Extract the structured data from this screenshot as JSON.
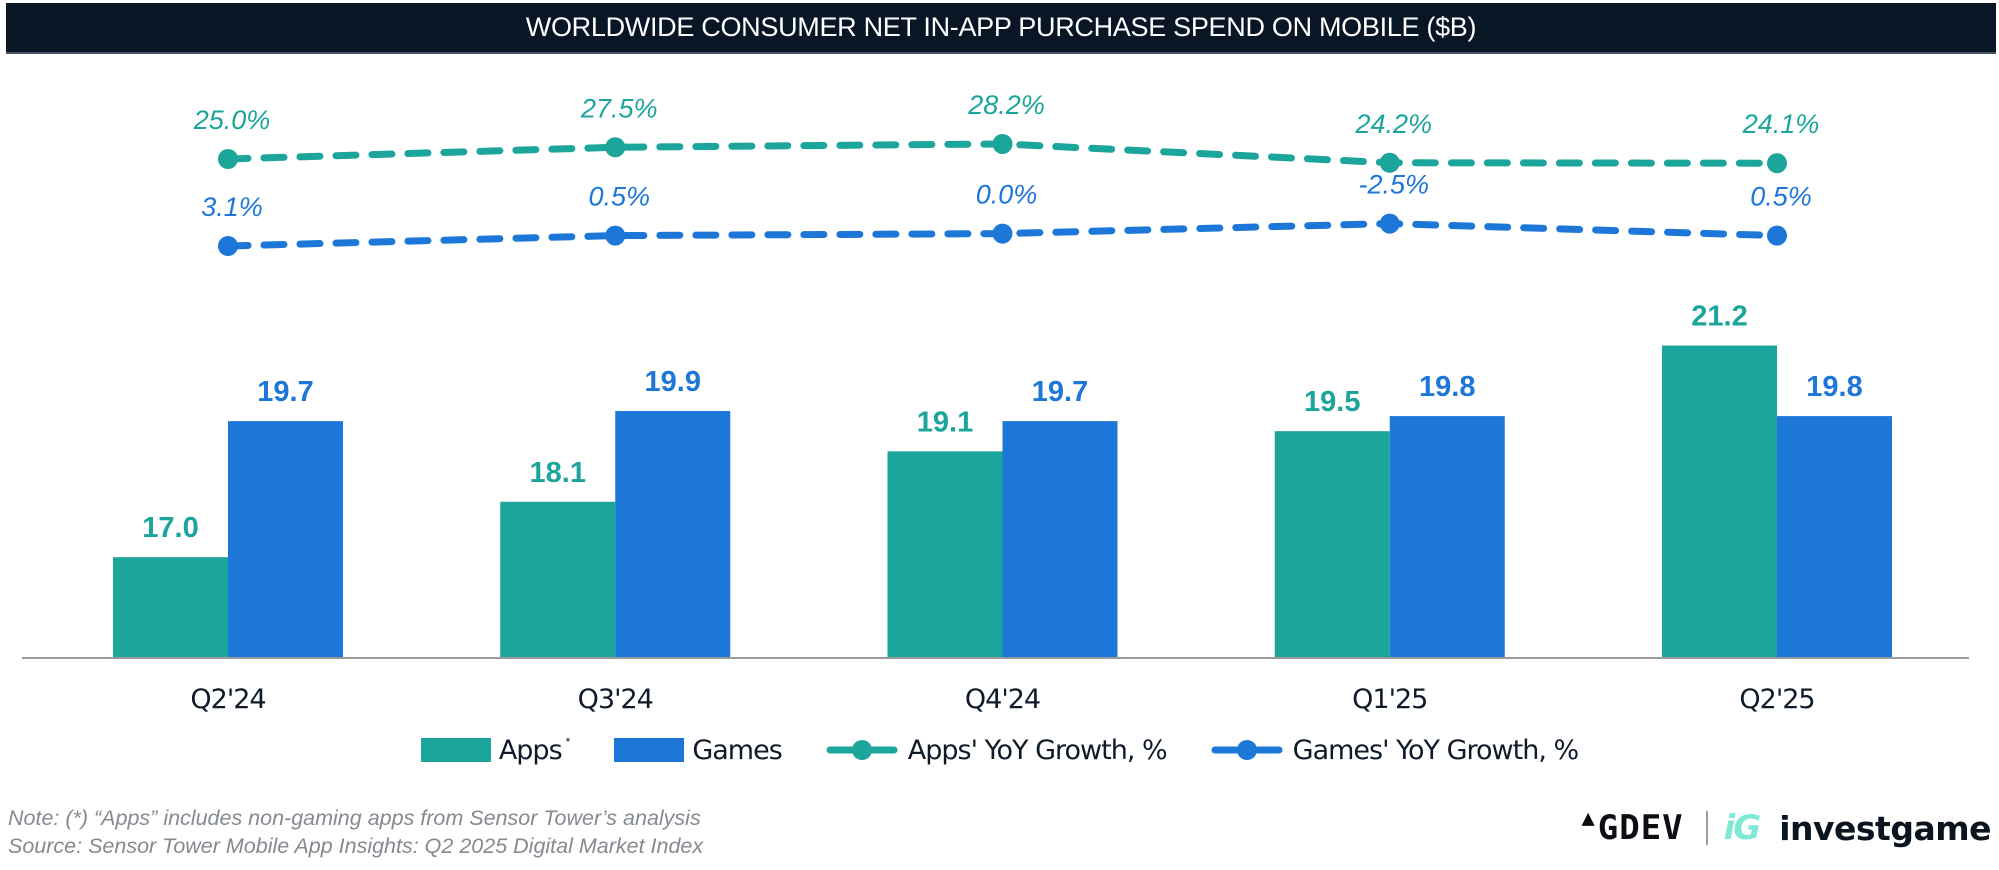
{
  "header": {
    "title": "WORLDWIDE CONSUMER NET IN-APP PURCHASE SPEND ON MOBILE ($B)"
  },
  "colors": {
    "apps": "#1ca59b",
    "games": "#1d77d9",
    "title_bg": "#081626",
    "axis": "#9a9a9a",
    "tick_text": "#0f1b2a",
    "note_text": "#858a90"
  },
  "chart_data": {
    "type": "bar",
    "title": "WORLDWIDE CONSUMER NET IN-APP PURCHASE SPEND ON MOBILE ($B)",
    "xlabel": "",
    "ylabel": "",
    "unit": "$B",
    "categories": [
      "Q2'24",
      "Q3'24",
      "Q4'24",
      "Q1'25",
      "Q2'25"
    ],
    "series": [
      {
        "name": "Apps",
        "legend_label": "Apps",
        "legend_mark": "*",
        "kind": "bar",
        "color": "#1ca59b",
        "values": [
          17.0,
          18.1,
          19.1,
          19.5,
          21.2
        ],
        "labels": [
          "17.0",
          "18.1",
          "19.1",
          "19.5",
          "21.2"
        ]
      },
      {
        "name": "Games",
        "legend_label": "Games",
        "kind": "bar",
        "color": "#1d77d9",
        "values": [
          19.7,
          19.9,
          19.7,
          19.8,
          19.8
        ],
        "labels": [
          "19.7",
          "19.9",
          "19.7",
          "19.8",
          "19.8"
        ]
      },
      {
        "name": "Apps' YoY Growth, %",
        "legend_label": "Apps' YoY Growth, %",
        "kind": "line",
        "style": "dashed",
        "color": "#1ca59b",
        "values": [
          25.0,
          27.5,
          28.2,
          24.2,
          24.1
        ],
        "labels": [
          "25.0%",
          "27.5%",
          "28.2%",
          "24.2%",
          "24.1%"
        ]
      },
      {
        "name": "Games' YoY Growth, %",
        "legend_label": "Games' YoY Growth, %",
        "kind": "line",
        "style": "dashed",
        "color": "#1d77d9",
        "values": [
          3.1,
          0.5,
          0.0,
          -2.5,
          0.5
        ],
        "labels": [
          "3.1%",
          "0.5%",
          "0.0%",
          "-2.5%",
          "0.5%"
        ]
      }
    ],
    "ylim": [
      15,
      22
    ],
    "y_axis_visible": false,
    "grid": false,
    "legend_position": "bottom-center"
  },
  "footer": {
    "note": "Note: (*) “Apps” includes non-gaming apps from Sensor Tower’s analysis",
    "source": "Source: Sensor Tower Mobile App Insights: Q2 2025 Digital Market Index",
    "logo_gdev": "GDEV",
    "logo_ig_mark": "iG",
    "logo_investgame": "investgame"
  }
}
